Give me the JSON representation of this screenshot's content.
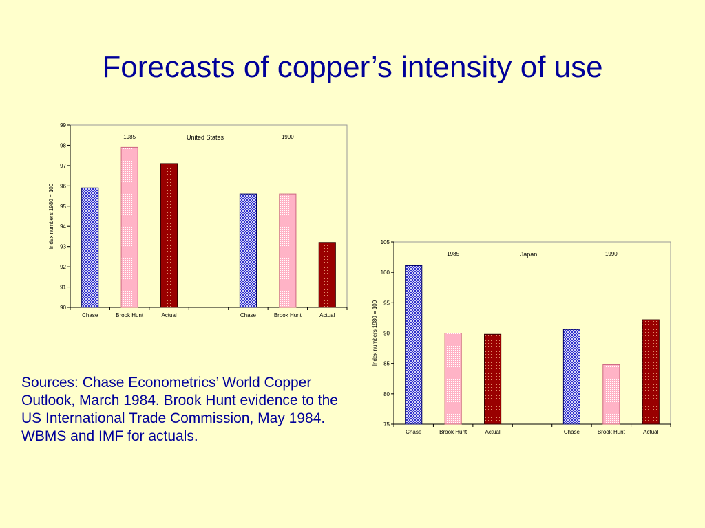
{
  "slide": {
    "title": "Forecasts of copper’s intensity of use",
    "sources": "Sources: Chase Econometrics’ World Copper Outlook, March 1984. Brook Hunt evidence to the US International Trade Commission, May 1984. WBMS and IMF for actuals."
  },
  "colors": {
    "background": "#ffffcc",
    "title": "#000099",
    "chase": "#3333cc",
    "brook_hunt": "#ffb3c6",
    "actual": "#990000"
  },
  "chart_data": [
    {
      "type": "bar",
      "title": "United States",
      "ylabel": "Index numbers 1980 = 100",
      "ylim": [
        90,
        99
      ],
      "yticks": [
        90,
        91,
        92,
        93,
        94,
        95,
        96,
        97,
        98,
        99
      ],
      "grid": false,
      "groups": [
        {
          "label": "1985",
          "categories": [
            "Chase",
            "Brook Hunt",
            "Actual"
          ],
          "values": [
            95.9,
            97.9,
            97.1
          ]
        },
        {
          "label": "1990",
          "categories": [
            "Chase",
            "Brook Hunt",
            "Actual"
          ],
          "values": [
            95.6,
            95.6,
            93.2
          ]
        }
      ]
    },
    {
      "type": "bar",
      "title": "Japan",
      "ylabel": "Index numbers 1980 = 100",
      "ylim": [
        75,
        105
      ],
      "yticks": [
        75,
        80,
        85,
        90,
        95,
        100,
        105
      ],
      "grid": false,
      "groups": [
        {
          "label": "1985",
          "categories": [
            "Chase",
            "Brook Hunt",
            "Actual"
          ],
          "values": [
            101.1,
            90.0,
            89.8
          ]
        },
        {
          "label": "1990",
          "categories": [
            "Chase",
            "Brook Hunt",
            "Actual"
          ],
          "values": [
            90.6,
            84.8,
            92.2
          ]
        }
      ]
    }
  ]
}
